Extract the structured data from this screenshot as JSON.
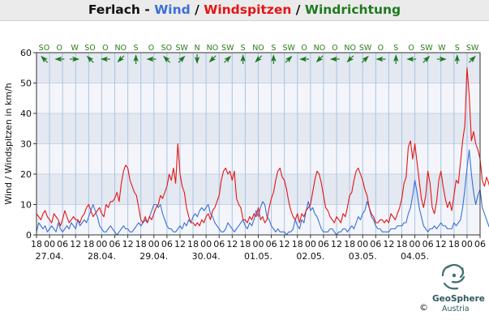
{
  "header": {
    "station": "Ferlach",
    "sep1": " - ",
    "wind": "Wind",
    "sep2": " / ",
    "gusts": "Windspitzen",
    "sep3": " / ",
    "direction": "Windrichtung"
  },
  "colors": {
    "wind": "#3a6fd8",
    "gusts": "#e41414",
    "direction": "#1e7a1e",
    "plot_band_dark": "#e3e8f1",
    "plot_band_light": "#f3f5fa",
    "vgrid": "#a9c4e4",
    "logo": "#3f6f6f"
  },
  "logo": {
    "name": "GeoSphere",
    "sub": "Austria",
    "copyright": "©"
  },
  "chart_data": {
    "type": "line",
    "title": "Ferlach - Wind / Windspitzen / Windrichtung",
    "ylabel": "Wind / Windspitzen in km/h",
    "ylim": [
      0,
      60
    ],
    "yticks": [
      0,
      10,
      20,
      30,
      40,
      50,
      60
    ],
    "grid": true,
    "x_start": "26.04. 18:00",
    "x_step_hours": 1,
    "xtick_step_hours": 6,
    "xtick_labels": [
      "18",
      "00",
      "06",
      "12",
      "18",
      "00",
      "06",
      "12",
      "18",
      "00",
      "06",
      "12",
      "18",
      "00",
      "06",
      "12",
      "18",
      "00",
      "06",
      "12",
      "18",
      "00",
      "06",
      "12",
      "18",
      "00",
      "06",
      "12",
      "18",
      "00",
      "06",
      "12",
      "18",
      "00",
      "06"
    ],
    "date_labels": [
      "27.04.",
      "28.04.",
      "29.04.",
      "30.04.",
      "01.05.",
      "02.05.",
      "03.05.",
      "04.05."
    ],
    "direction_labels": [
      "SO",
      "O",
      "W",
      "SO",
      "O",
      "NO",
      "S",
      "O",
      "SO",
      "SW",
      "N",
      "NO",
      "SW",
      "S",
      "NO",
      "S",
      "SW",
      "O",
      "NO",
      "O",
      "NO",
      "SW",
      "O",
      "S",
      "O",
      "SW",
      "W",
      "S",
      "SW"
    ],
    "series": [
      {
        "name": "Wind",
        "values": [
          1,
          4,
          3,
          2,
          3,
          1,
          2,
          3,
          2,
          1,
          4,
          2,
          1,
          2,
          3,
          2,
          4,
          3,
          2,
          5,
          3,
          4,
          5,
          4,
          6,
          8,
          10,
          8,
          6,
          3,
          2,
          1,
          1,
          2,
          3,
          2,
          1,
          0,
          1,
          2,
          3,
          2,
          2,
          1,
          1,
          2,
          3,
          4,
          3,
          4,
          5,
          4,
          6,
          8,
          10,
          10,
          9,
          10,
          7,
          5,
          3,
          2,
          2,
          1,
          1,
          2,
          3,
          2,
          4,
          3,
          5,
          4,
          6,
          7,
          6,
          8,
          9,
          8,
          9,
          10,
          7,
          6,
          4,
          3,
          2,
          1,
          1,
          2,
          4,
          3,
          2,
          1,
          2,
          3,
          4,
          5,
          3,
          2,
          4,
          3,
          5,
          8,
          6,
          9,
          11,
          10,
          6,
          5,
          3,
          2,
          1,
          2,
          1,
          1,
          1,
          0,
          1,
          1,
          2,
          5,
          3,
          2,
          5,
          4,
          8,
          11,
          8,
          9,
          7,
          6,
          4,
          2,
          1,
          1,
          1,
          2,
          2,
          1,
          0,
          1,
          1,
          2,
          2,
          1,
          2,
          3,
          2,
          4,
          6,
          5,
          7,
          8,
          11,
          9,
          6,
          5,
          3,
          2,
          2,
          1,
          1,
          1,
          1,
          2,
          2,
          2,
          3,
          3,
          3,
          4,
          4,
          7,
          9,
          13,
          18,
          14,
          9,
          6,
          3,
          2,
          1,
          2,
          2,
          3,
          2,
          3,
          4,
          3,
          3,
          2,
          2,
          2,
          4,
          3,
          4,
          5,
          9,
          15,
          22,
          28,
          20,
          14,
          10,
          13,
          15,
          9,
          7,
          5,
          3,
          1,
          3,
          5
        ]
      },
      {
        "name": "Windspitzen",
        "values": [
          7,
          6,
          5,
          7,
          8,
          6,
          5,
          4,
          7,
          6,
          5,
          3,
          5,
          8,
          6,
          4,
          5,
          6,
          5,
          5,
          4,
          6,
          7,
          9,
          10,
          8,
          6,
          7,
          8,
          9,
          7,
          6,
          10,
          9,
          11,
          11,
          12,
          14,
          11,
          17,
          21,
          23,
          22,
          18,
          16,
          14,
          13,
          9,
          5,
          4,
          6,
          4,
          6,
          5,
          7,
          9,
          10,
          13,
          12,
          14,
          16,
          20,
          18,
          22,
          17,
          30,
          20,
          16,
          14,
          9,
          6,
          4,
          4,
          3,
          4,
          3,
          5,
          4,
          6,
          7,
          5,
          8,
          9,
          11,
          13,
          18,
          21,
          22,
          20,
          21,
          18,
          21,
          12,
          10,
          9,
          5,
          5,
          4,
          6,
          5,
          7,
          6,
          9,
          5,
          6,
          4,
          5,
          9,
          12,
          14,
          18,
          21,
          22,
          19,
          18,
          15,
          11,
          8,
          6,
          5,
          7,
          4,
          7,
          6,
          8,
          9,
          10,
          14,
          18,
          21,
          20,
          17,
          13,
          9,
          8,
          6,
          5,
          4,
          6,
          5,
          4,
          7,
          6,
          9,
          13,
          14,
          18,
          21,
          22,
          20,
          18,
          15,
          13,
          9,
          7,
          6,
          4,
          4,
          5,
          5,
          4,
          5,
          4,
          7,
          6,
          5,
          7,
          9,
          12,
          17,
          19,
          29,
          31,
          25,
          30,
          24,
          18,
          12,
          9,
          13,
          21,
          17,
          9,
          7,
          11,
          18,
          21,
          16,
          12,
          9,
          11,
          8,
          13,
          18,
          17,
          24,
          31,
          36,
          55,
          46,
          31,
          34,
          30,
          28,
          25,
          18,
          16,
          19,
          17,
          14,
          18,
          21
        ]
      }
    ]
  }
}
